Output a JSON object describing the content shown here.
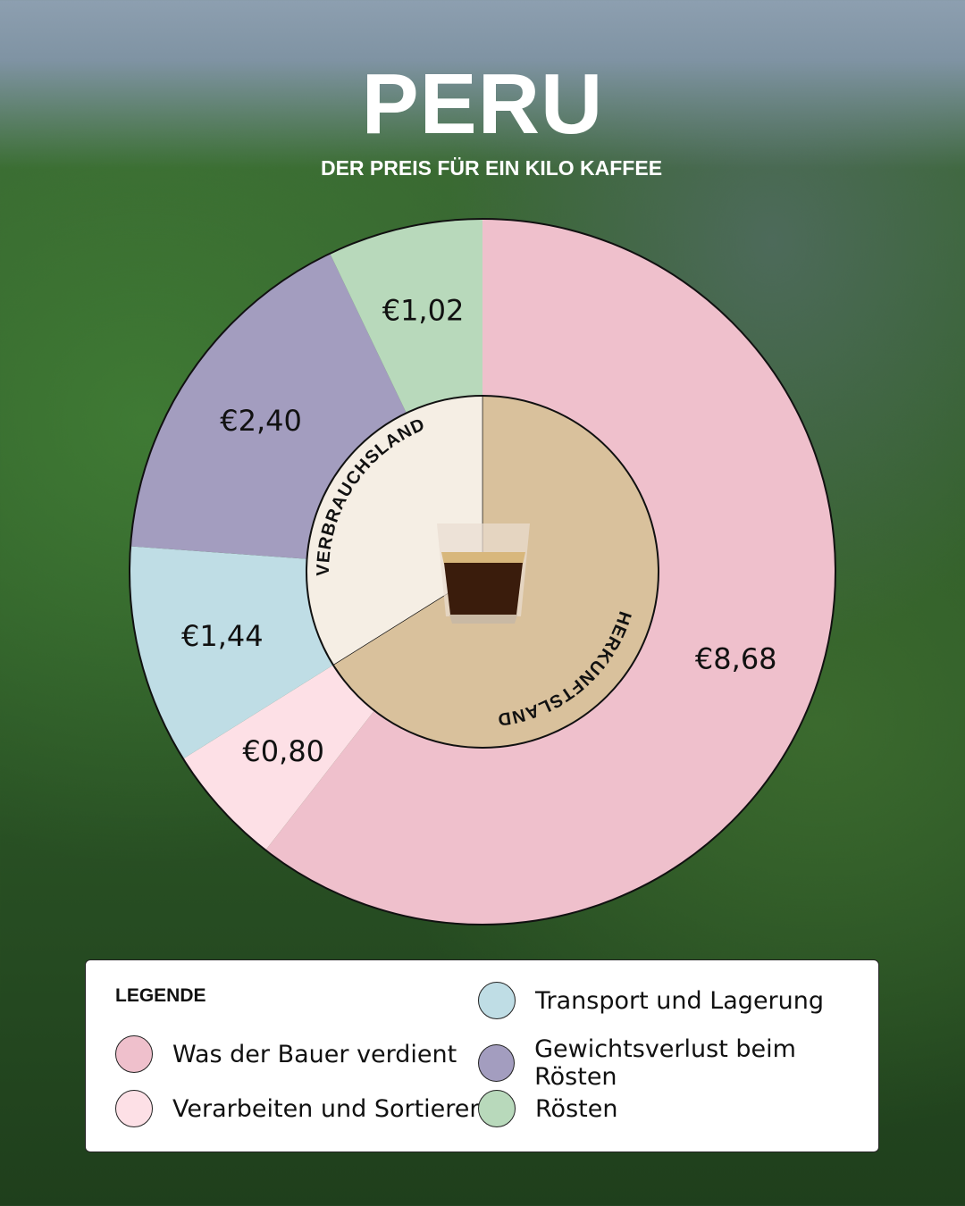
{
  "header": {
    "title": "PERU",
    "subtitle": "DER PREIS FÜR EIN KILO KAFFEE"
  },
  "chart_data": {
    "type": "pie",
    "title": "PERU",
    "subtitle": "DER PREIS FÜR EIN KILO KAFFEE",
    "outer_ring": {
      "categories": [
        "Was der Bauer verdient",
        "Verarbeiten und Sortieren",
        "Transport und Lagerung",
        "Gewichtsverlust beim Rösten",
        "Rösten"
      ],
      "values": [
        8.68,
        0.8,
        1.44,
        2.4,
        1.02
      ],
      "labels": [
        "€8,68",
        "€0,80",
        "€1,44",
        "€2,40",
        "€1,02"
      ],
      "colors": [
        "#efc0cc",
        "#fde0e6",
        "#bfdde5",
        "#a39dbf",
        "#b8d9bb"
      ]
    },
    "inner_ring": {
      "categories": [
        "HERKUNFTSLAND",
        "VERBRAUCHSLAND"
      ],
      "values": [
        9.48,
        4.86
      ],
      "colors": [
        "#d9c19c",
        "#f5eee4"
      ]
    },
    "center_icon": "espresso-glass-icon"
  },
  "legend": {
    "title": "LEGENDE",
    "items": [
      {
        "label": "Was der Bauer verdient",
        "color": "#efc0cc"
      },
      {
        "label": "Verarbeiten und Sortieren",
        "color": "#fde0e6"
      },
      {
        "label": "Transport und Lagerung",
        "color": "#bfdde5"
      },
      {
        "label": "Gewichtsverlust beim Rösten",
        "color": "#a39dbf"
      },
      {
        "label": "Rösten",
        "color": "#b8d9bb"
      }
    ]
  }
}
